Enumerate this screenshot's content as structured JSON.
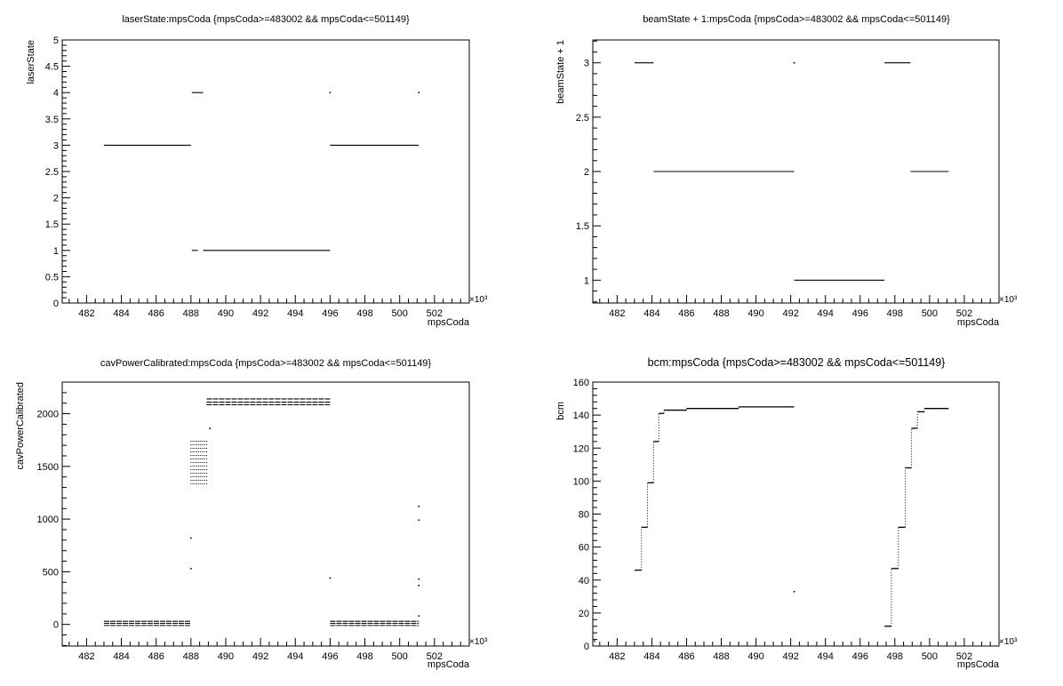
{
  "chart_data": [
    {
      "type": "scatter",
      "title": "laserState:mpsCoda {mpsCoda>=483002 && mpsCoda<=501149}",
      "xlabel": "mpsCoda",
      "ylabel": "laserState",
      "xlim": [
        480.6,
        504.0
      ],
      "ylim": [
        0,
        5
      ],
      "xticks": [
        "482",
        "484",
        "486",
        "488",
        "490",
        "492",
        "494",
        "496",
        "498",
        "500",
        "502"
      ],
      "yticks": [
        "0",
        "0.5",
        "1",
        "1.5",
        "2",
        "2.5",
        "3",
        "3.5",
        "4",
        "4.5",
        "5"
      ],
      "x_exponent": "×10³",
      "segments": [
        {
          "x0": 483.0,
          "x1": 488.0,
          "y": 3
        },
        {
          "x0": 496.0,
          "x1": 501.1,
          "y": 3
        },
        {
          "x0": 488.05,
          "x1": 488.4,
          "y": 1
        },
        {
          "x0": 488.7,
          "x1": 496.0,
          "y": 1
        },
        {
          "x0": 488.05,
          "x1": 488.7,
          "y": 4
        }
      ],
      "points": [
        {
          "x": 496.0,
          "y": 4
        },
        {
          "x": 501.1,
          "y": 4
        }
      ]
    },
    {
      "type": "scatter",
      "title": "beamState + 1:mpsCoda {mpsCoda>=483002 && mpsCoda<=501149}",
      "xlabel": "mpsCoda",
      "ylabel": "beamState + 1",
      "xlim": [
        480.6,
        504.0
      ],
      "ylim": [
        0.79,
        3.21
      ],
      "xticks": [
        "482",
        "484",
        "486",
        "488",
        "490",
        "492",
        "494",
        "496",
        "498",
        "500",
        "502"
      ],
      "yticks": [
        "1",
        "1.5",
        "2",
        "2.5",
        "3"
      ],
      "x_exponent": "×10³",
      "segments": [
        {
          "x0": 483.0,
          "x1": 484.1,
          "y": 3
        },
        {
          "x0": 484.1,
          "x1": 492.2,
          "y": 2
        },
        {
          "x0": 492.2,
          "x1": 497.4,
          "y": 1
        },
        {
          "x0": 497.4,
          "x1": 498.9,
          "y": 3
        },
        {
          "x0": 498.9,
          "x1": 501.1,
          "y": 2
        }
      ],
      "points": [
        {
          "x": 492.2,
          "y": 3
        }
      ]
    },
    {
      "type": "scatter",
      "title": "cavPowerCalibrated:mpsCoda {mpsCoda>=483002 && mpsCoda<=501149}",
      "xlabel": "mpsCoda",
      "ylabel": "cavPowerCalibrated",
      "xlim": [
        480.6,
        504.0
      ],
      "ylim": [
        -205,
        2300
      ],
      "xticks": [
        "482",
        "484",
        "486",
        "488",
        "490",
        "492",
        "494",
        "496",
        "498",
        "500",
        "502"
      ],
      "yticks": [
        "0",
        "500",
        "1000",
        "1500",
        "2000"
      ],
      "x_exponent": "×10³",
      "bands": [
        {
          "x0": 483.0,
          "x1": 488.0,
          "ys": [
            30,
            10,
            -10
          ]
        },
        {
          "x0": 496.0,
          "x1": 501.1,
          "ys": [
            30,
            10,
            -10
          ]
        },
        {
          "x0": 488.9,
          "x1": 496.0,
          "ys": [
            2140,
            2110,
            2085
          ]
        }
      ],
      "clusters": [
        {
          "x0": 488.0,
          "x1": 488.9,
          "y_min": 1330,
          "y_max": 1760
        }
      ],
      "points": [
        {
          "x": 488.0,
          "y": 820
        },
        {
          "x": 488.0,
          "y": 530
        },
        {
          "x": 496.0,
          "y": 440
        },
        {
          "x": 501.1,
          "y": 1120
        },
        {
          "x": 501.1,
          "y": 990
        },
        {
          "x": 501.1,
          "y": 430
        },
        {
          "x": 501.1,
          "y": 370
        },
        {
          "x": 501.1,
          "y": 80
        },
        {
          "x": 489.1,
          "y": 1860
        }
      ]
    },
    {
      "type": "scatter",
      "title": "bcm:mpsCoda {mpsCoda>=483002 && mpsCoda<=501149}",
      "xlabel": "mpsCoda",
      "ylabel": "bcm",
      "xlim": [
        480.6,
        504.0
      ],
      "ylim": [
        0,
        160
      ],
      "xticks": [
        "482",
        "484",
        "486",
        "488",
        "490",
        "492",
        "494",
        "496",
        "498",
        "500",
        "502"
      ],
      "yticks": [
        "0",
        "20",
        "40",
        "60",
        "80",
        "100",
        "120",
        "140",
        "160"
      ],
      "x_exponent": "×10³",
      "steps": [
        {
          "x0": 483.0,
          "x1": 483.4,
          "y": 46
        },
        {
          "x0": 483.4,
          "x1": 483.75,
          "y": 72
        },
        {
          "x0": 483.75,
          "x1": 484.1,
          "y": 99
        },
        {
          "x0": 484.1,
          "x1": 484.4,
          "y": 124
        },
        {
          "x0": 484.4,
          "x1": 484.7,
          "y": 141
        },
        {
          "x0": 484.7,
          "x1": 486.0,
          "y": 143
        },
        {
          "x0": 486.0,
          "x1": 489.0,
          "y": 144
        },
        {
          "x0": 489.0,
          "x1": 492.2,
          "y": 145
        },
        {
          "x0": 497.4,
          "x1": 497.8,
          "y": 12
        },
        {
          "x0": 497.8,
          "x1": 498.2,
          "y": 47
        },
        {
          "x0": 498.2,
          "x1": 498.6,
          "y": 72
        },
        {
          "x0": 498.6,
          "x1": 498.95,
          "y": 108
        },
        {
          "x0": 498.95,
          "x1": 499.3,
          "y": 132
        },
        {
          "x0": 499.3,
          "x1": 499.7,
          "y": 142
        },
        {
          "x0": 499.7,
          "x1": 501.1,
          "y": 144
        }
      ],
      "points": [
        {
          "x": 492.2,
          "y": 33
        },
        {
          "x": 480.7,
          "y": 3
        }
      ]
    }
  ]
}
